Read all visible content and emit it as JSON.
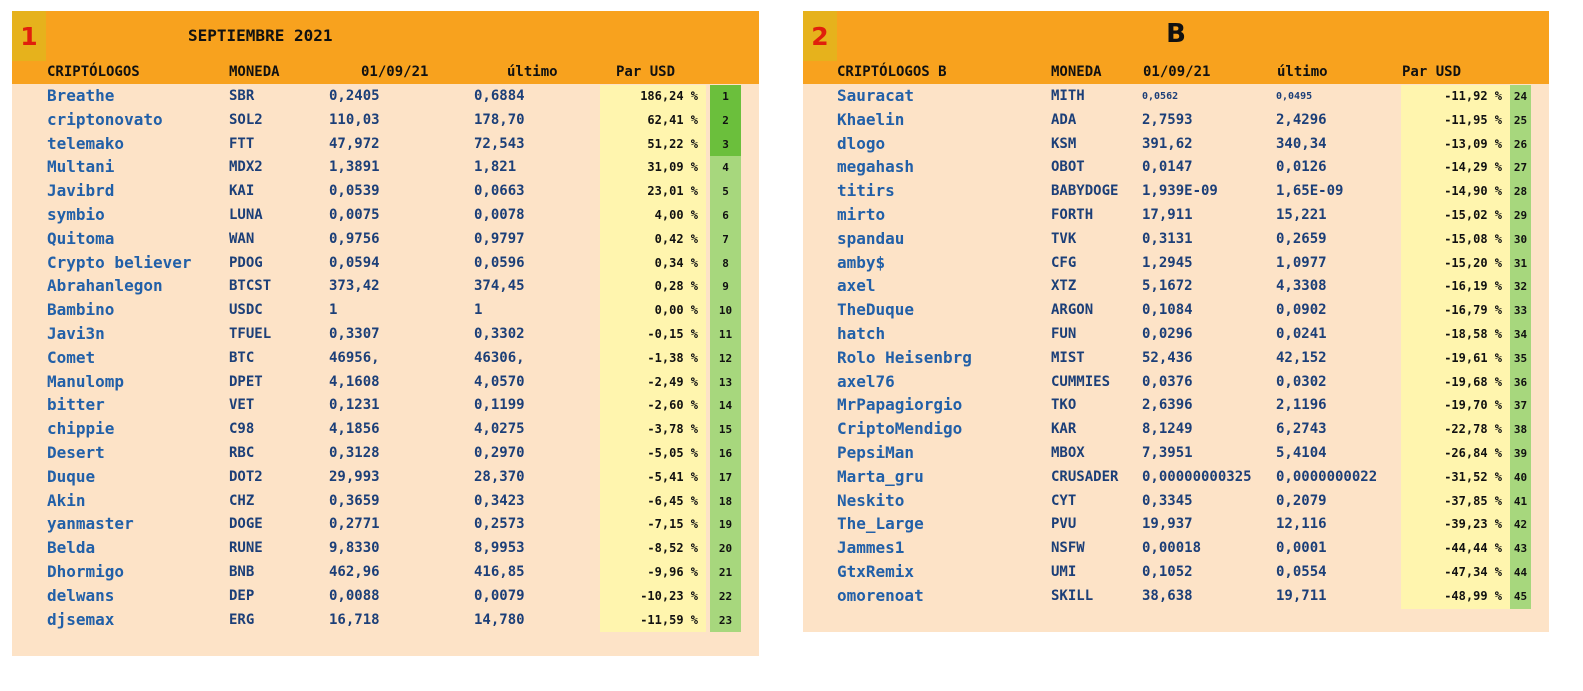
{
  "panel1": {
    "badge": "1",
    "title": "SEPTIEMBRE 2021",
    "headers": [
      "CRIPTÓLOGOS",
      "MONEDA",
      "01/09/21",
      "último",
      "Par USD"
    ],
    "rows": [
      {
        "name": "Breathe",
        "coin": "SBR",
        "start": "0,2405",
        "last": "0,6884",
        "pct": "186,24 %",
        "rank": "1"
      },
      {
        "name": "criptonovato",
        "coin": "SOL2",
        "start": "110,03",
        "last": "178,70",
        "pct": "62,41 %",
        "rank": "2"
      },
      {
        "name": "telemako",
        "coin": "FTT",
        "start": "47,972",
        "last": "72,543",
        "pct": "51,22 %",
        "rank": "3"
      },
      {
        "name": "Multani",
        "coin": "MDX2",
        "start": "1,3891",
        "last": "1,821",
        "pct": "31,09 %",
        "rank": "4"
      },
      {
        "name": "Javibrd",
        "coin": "KAI",
        "start": "0,0539",
        "last": "0,0663",
        "pct": "23,01 %",
        "rank": "5"
      },
      {
        "name": "symbio",
        "coin": "LUNA",
        "start": "0,0075",
        "last": "0,0078",
        "pct": "4,00 %",
        "rank": "6"
      },
      {
        "name": "Quitoma",
        "coin": "WAN",
        "start": "0,9756",
        "last": "0,9797",
        "pct": "0,42 %",
        "rank": "7"
      },
      {
        "name": "Crypto believer",
        "coin": "PDOG",
        "start": "0,0594",
        "last": "0,0596",
        "pct": "0,34 %",
        "rank": "8"
      },
      {
        "name": "Abrahanlegon",
        "coin": "BTCST",
        "start": "373,42",
        "last": "374,45",
        "pct": "0,28 %",
        "rank": "9"
      },
      {
        "name": "Bambino",
        "coin": "USDC",
        "start": "1",
        "last": "1",
        "pct": "0,00 %",
        "rank": "10"
      },
      {
        "name": "Javi3n",
        "coin": "TFUEL",
        "start": "0,3307",
        "last": "0,3302",
        "pct": "-0,15 %",
        "rank": "11"
      },
      {
        "name": "Comet",
        "coin": "BTC",
        "start": "46956,",
        "last": "46306,",
        "pct": "-1,38 %",
        "rank": "12"
      },
      {
        "name": "Manulomp",
        "coin": "DPET",
        "start": "4,1608",
        "last": "4,0570",
        "pct": "-2,49 %",
        "rank": "13"
      },
      {
        "name": "bitter",
        "coin": "VET",
        "start": "0,1231",
        "last": "0,1199",
        "pct": "-2,60 %",
        "rank": "14"
      },
      {
        "name": "chippie",
        "coin": "C98",
        "start": "4,1856",
        "last": "4,0275",
        "pct": "-3,78 %",
        "rank": "15"
      },
      {
        "name": "Desert",
        "coin": "RBC",
        "start": "0,3128",
        "last": "0,2970",
        "pct": "-5,05 %",
        "rank": "16"
      },
      {
        "name": "Duque",
        "coin": "DOT2",
        "start": "29,993",
        "last": "28,370",
        "pct": "-5,41 %",
        "rank": "17"
      },
      {
        "name": "Akin",
        "coin": "CHZ",
        "start": "0,3659",
        "last": "0,3423",
        "pct": "-6,45 %",
        "rank": "18"
      },
      {
        "name": "yanmaster",
        "coin": "DOGE",
        "start": "0,2771",
        "last": "0,2573",
        "pct": "-7,15 %",
        "rank": "19"
      },
      {
        "name": "Belda",
        "coin": "RUNE",
        "start": "9,8330",
        "last": "8,9953",
        "pct": "-8,52 %",
        "rank": "20"
      },
      {
        "name": "Dhormigo",
        "coin": "BNB",
        "start": "462,96",
        "last": "416,85",
        "pct": "-9,96 %",
        "rank": "21"
      },
      {
        "name": "delwans",
        "coin": "DEP",
        "start": "0,0088",
        "last": "0,0079",
        "pct": "-10,23 %",
        "rank": "22"
      },
      {
        "name": "djsemax",
        "coin": "ERG",
        "start": "16,718",
        "last": "14,780",
        "pct": "-11,59 %",
        "rank": "23"
      }
    ]
  },
  "panel2": {
    "badge": "2",
    "title": "B",
    "headers": [
      "CRIPTÓLOGOS B",
      "MONEDA",
      "01/09/21",
      "último",
      "Par USD"
    ],
    "rows": [
      {
        "name": "Sauracat",
        "coin": "MITH",
        "start": "0,0562",
        "last": "0,0495",
        "pct": "-11,92 %",
        "rank": "24"
      },
      {
        "name": "Khaelin",
        "coin": "ADA",
        "start": "2,7593",
        "last": "2,4296",
        "pct": "-11,95 %",
        "rank": "25"
      },
      {
        "name": "dlogo",
        "coin": "KSM",
        "start": "391,62",
        "last": "340,34",
        "pct": "-13,09 %",
        "rank": "26"
      },
      {
        "name": "megahash",
        "coin": "OBOT",
        "start": "0,0147",
        "last": "0,0126",
        "pct": "-14,29 %",
        "rank": "27"
      },
      {
        "name": "titirs",
        "coin": "BABYDOGE",
        "start": "1,939E-09",
        "last": "1,65E-09",
        "pct": "-14,90 %",
        "rank": "28"
      },
      {
        "name": "mirto",
        "coin": "FORTH",
        "start": "17,911",
        "last": "15,221",
        "pct": "-15,02 %",
        "rank": "29"
      },
      {
        "name": "spandau",
        "coin": "TVK",
        "start": "0,3131",
        "last": "0,2659",
        "pct": "-15,08 %",
        "rank": "30"
      },
      {
        "name": "amby$",
        "coin": "CFG",
        "start": "1,2945",
        "last": "1,0977",
        "pct": "-15,20 %",
        "rank": "31"
      },
      {
        "name": "axel",
        "coin": "XTZ",
        "start": "5,1672",
        "last": "4,3308",
        "pct": "-16,19 %",
        "rank": "32"
      },
      {
        "name": "TheDuque",
        "coin": "ARGON",
        "start": "0,1084",
        "last": "0,0902",
        "pct": "-16,79 %",
        "rank": "33"
      },
      {
        "name": "hatch",
        "coin": "FUN",
        "start": "0,0296",
        "last": "0,0241",
        "pct": "-18,58 %",
        "rank": "34"
      },
      {
        "name": "Rolo Heisenbrg",
        "coin": "MIST",
        "start": "52,436",
        "last": "42,152",
        "pct": "-19,61 %",
        "rank": "35"
      },
      {
        "name": "axel76",
        "coin": "CUMMIES",
        "start": "0,0376",
        "last": "0,0302",
        "pct": "-19,68 %",
        "rank": "36"
      },
      {
        "name": "MrPapagiorgio",
        "coin": "TKO",
        "start": "2,6396",
        "last": "2,1196",
        "pct": "-19,70 %",
        "rank": "37"
      },
      {
        "name": "CriptoMendigo",
        "coin": "KAR",
        "start": "8,1249",
        "last": "6,2743",
        "pct": "-22,78 %",
        "rank": "38"
      },
      {
        "name": "PepsiMan",
        "coin": "MBOX",
        "start": "7,3951",
        "last": "5,4104",
        "pct": "-26,84 %",
        "rank": "39"
      },
      {
        "name": "Marta_gru",
        "coin": "CRUSADER",
        "start": "0,00000000325",
        "last": "0,0000000022",
        "pct": "-31,52 %",
        "rank": "40"
      },
      {
        "name": "Neskito",
        "coin": "CYT",
        "start": "0,3345",
        "last": "0,2079",
        "pct": "-37,85 %",
        "rank": "41"
      },
      {
        "name": "The_Large",
        "coin": "PVU",
        "start": "19,937",
        "last": "12,116",
        "pct": "-39,23 %",
        "rank": "42"
      },
      {
        "name": "Jammes1",
        "coin": "NSFW",
        "start": "0,00018",
        "last": "0,0001",
        "pct": "-44,44 %",
        "rank": "43"
      },
      {
        "name": "GtxRemix",
        "coin": "UMI",
        "start": "0,1052",
        "last": "0,0554",
        "pct": "-47,34 %",
        "rank": "44"
      },
      {
        "name": "omorenoat",
        "coin": "SKILL",
        "start": "38,638",
        "last": "19,711",
        "pct": "-48,99 %",
        "rank": "45"
      }
    ]
  },
  "colors": {
    "header_orange": "#f8a21e",
    "panel_bg": "#fde3c7",
    "badge_bg": "#e6b21c",
    "badge_text": "#e01f0c",
    "pct_bg": "#fff5ae",
    "rank_top": "#6bbf3c",
    "rank_bg": "#a7d77d",
    "name_text": "#2260a8"
  }
}
